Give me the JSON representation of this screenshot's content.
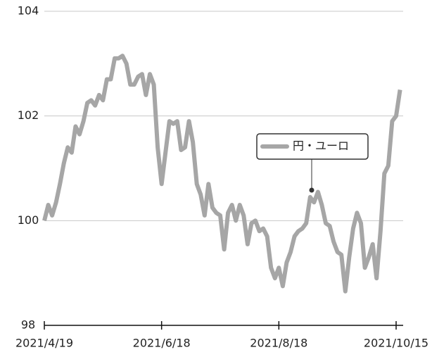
{
  "chart_data": {
    "type": "line",
    "categories": [
      "2021/4/19",
      null,
      null,
      null,
      null,
      null,
      null,
      null,
      null,
      null,
      null,
      null,
      null,
      null,
      null,
      null,
      null,
      null,
      null,
      null,
      null,
      null,
      null,
      null,
      null,
      null,
      null,
      null,
      null,
      null,
      "2021/6/18",
      null,
      null,
      null,
      null,
      null,
      null,
      null,
      null,
      null,
      null,
      null,
      null,
      null,
      null,
      null,
      null,
      null,
      null,
      null,
      null,
      null,
      null,
      null,
      null,
      null,
      null,
      null,
      null,
      null,
      "2021/8/18",
      null,
      null,
      null,
      null,
      null,
      null,
      null,
      null,
      null,
      null,
      null,
      null,
      null,
      null,
      null,
      null,
      null,
      null,
      null,
      null,
      null,
      null,
      null,
      null,
      null,
      null,
      null,
      null,
      null,
      "2021/10/15",
      null
    ],
    "series": [
      {
        "name": "円・ユーロ",
        "color": "#a6a6a6",
        "values": [
          100.0,
          100.3,
          100.1,
          100.35,
          100.7,
          101.1,
          101.4,
          101.3,
          101.8,
          101.65,
          101.9,
          102.25,
          102.3,
          102.2,
          102.4,
          102.3,
          102.7,
          102.7,
          103.1,
          103.1,
          103.15,
          103.0,
          102.6,
          102.6,
          102.75,
          102.8,
          102.4,
          102.8,
          102.6,
          101.4,
          100.7,
          101.3,
          101.9,
          101.85,
          101.9,
          101.35,
          101.4,
          101.9,
          101.5,
          100.7,
          100.5,
          100.1,
          100.7,
          100.25,
          100.15,
          100.1,
          99.45,
          100.15,
          100.3,
          100.0,
          100.3,
          100.1,
          99.55,
          99.95,
          100.0,
          99.8,
          99.85,
          99.7,
          99.1,
          98.9,
          99.1,
          98.75,
          99.2,
          99.4,
          99.7,
          99.8,
          99.85,
          99.95,
          100.45,
          100.35,
          100.55,
          100.3,
          99.95,
          99.9,
          99.6,
          99.4,
          99.35,
          98.65,
          99.3,
          99.85,
          100.15,
          99.95,
          99.1,
          99.3,
          99.55,
          98.9,
          99.8,
          100.9,
          101.05,
          101.9,
          102.0,
          102.5
        ]
      }
    ],
    "ylim": [
      98,
      104
    ],
    "yticks": [
      98,
      100,
      102,
      104
    ],
    "grid": true
  }
}
